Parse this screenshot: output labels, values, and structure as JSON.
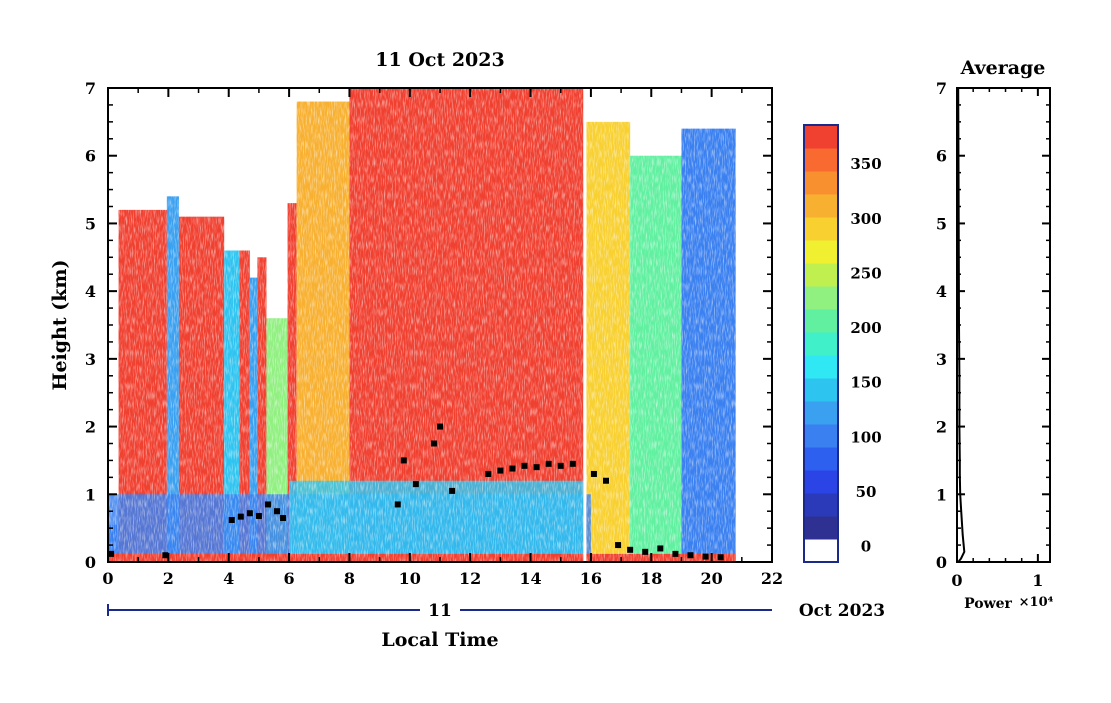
{
  "chart_data": [
    {
      "type": "heatmap",
      "title": "11 Oct 2023",
      "ylabel": "Height (km)",
      "xlabel": "Local Time",
      "date_row": {
        "day": "11",
        "month_year": "Oct 2023"
      },
      "xlim": [
        0,
        22
      ],
      "ylim": [
        0,
        7
      ],
      "x_ticks": [
        "0",
        "2",
        "4",
        "6",
        "8",
        "10",
        "12",
        "14",
        "16",
        "18",
        "20",
        "22"
      ],
      "y_ticks": [
        "0",
        "1",
        "2",
        "3",
        "4",
        "5",
        "6",
        "7"
      ],
      "data_end_hour": 20.8,
      "data_gap_hours": [
        15.75,
        15.85
      ],
      "colorbar": {
        "ticks": [
          "0",
          "50",
          "100",
          "150",
          "200",
          "250",
          "300",
          "350"
        ],
        "tick_values": [
          0,
          50,
          100,
          150,
          200,
          250,
          300,
          350
        ],
        "range": [
          -25,
          375
        ],
        "colors": [
          "#2e3192",
          "#2b3ab8",
          "#2a44e6",
          "#2e60f0",
          "#3a80f0",
          "#3aa0f0",
          "#2ec4f0",
          "#30e8f4",
          "#40f0c8",
          "#60f0a0",
          "#90f080",
          "#c0f050",
          "#f0f030",
          "#f8d030",
          "#f8b030",
          "#f89030",
          "#f86a30",
          "#f04030"
        ],
        "below_color": "#ffffff"
      },
      "cloud_base_points_km": [
        {
          "x": 0.1,
          "y": 0.12
        },
        {
          "x": 1.9,
          "y": 0.1
        },
        {
          "x": 4.1,
          "y": 0.62
        },
        {
          "x": 4.4,
          "y": 0.67
        },
        {
          "x": 4.7,
          "y": 0.72
        },
        {
          "x": 5.0,
          "y": 0.68
        },
        {
          "x": 5.3,
          "y": 0.85
        },
        {
          "x": 5.6,
          "y": 0.75
        },
        {
          "x": 5.8,
          "y": 0.65
        },
        {
          "x": 9.6,
          "y": 0.85
        },
        {
          "x": 9.8,
          "y": 1.5
        },
        {
          "x": 10.2,
          "y": 1.15
        },
        {
          "x": 10.8,
          "y": 1.75
        },
        {
          "x": 11.0,
          "y": 2.0
        },
        {
          "x": 11.4,
          "y": 1.05
        },
        {
          "x": 12.6,
          "y": 1.3
        },
        {
          "x": 13.0,
          "y": 1.35
        },
        {
          "x": 13.4,
          "y": 1.38
        },
        {
          "x": 13.8,
          "y": 1.42
        },
        {
          "x": 14.2,
          "y": 1.4
        },
        {
          "x": 14.6,
          "y": 1.45
        },
        {
          "x": 15.0,
          "y": 1.42
        },
        {
          "x": 15.4,
          "y": 1.45
        },
        {
          "x": 16.1,
          "y": 1.3
        },
        {
          "x": 16.5,
          "y": 1.2
        },
        {
          "x": 16.9,
          "y": 0.25
        },
        {
          "x": 17.3,
          "y": 0.18
        },
        {
          "x": 17.8,
          "y": 0.15
        },
        {
          "x": 18.3,
          "y": 0.2
        },
        {
          "x": 18.8,
          "y": 0.12
        },
        {
          "x": 19.3,
          "y": 0.1
        },
        {
          "x": 19.8,
          "y": 0.08
        },
        {
          "x": 20.3,
          "y": 0.07
        }
      ]
    },
    {
      "type": "line",
      "title": "Average",
      "xlabel": "Power",
      "x_exponent": "×10⁴",
      "xlim": [
        0,
        11500
      ],
      "ylim": [
        0,
        7
      ],
      "x_ticks": [
        "0",
        "1"
      ],
      "y_ticks": [
        "0",
        "1",
        "2",
        "3",
        "4",
        "5",
        "6",
        "7"
      ],
      "series": [
        {
          "x": [
            150,
            500,
            900,
            700,
            500,
            400,
            350,
            350,
            300,
            300,
            250,
            220,
            200,
            150
          ],
          "y": [
            0.0,
            0.05,
            0.15,
            0.4,
            0.8,
            1.0,
            1.3,
            1.5,
            2.0,
            2.7,
            3.5,
            4.5,
            5.5,
            7.0
          ]
        }
      ]
    }
  ]
}
